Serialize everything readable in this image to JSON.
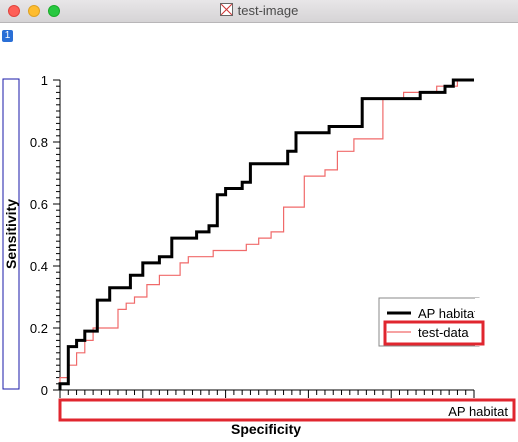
{
  "window": {
    "title": "test-image",
    "page_badge": "1",
    "icon": "image-document-icon"
  },
  "chart_data": {
    "type": "line",
    "xlabel": "Specificity",
    "ylabel": "Sensitivity",
    "axis_caption": "AP habitat",
    "xlim": [
      1,
      0
    ],
    "ylim": [
      0,
      1
    ],
    "y_ticks": [
      "0",
      "0.2",
      "0.4",
      "0.6",
      "0.8",
      "1"
    ],
    "legend": {
      "position": "bottom-right",
      "entries": [
        "AP habitat",
        "test-data"
      ]
    },
    "series": [
      {
        "name": "AP habitat",
        "color": "#000000",
        "points": [
          [
            1.0,
            0.0
          ],
          [
            1.0,
            0.02
          ],
          [
            0.98,
            0.02
          ],
          [
            0.98,
            0.14
          ],
          [
            0.96,
            0.14
          ],
          [
            0.96,
            0.16
          ],
          [
            0.94,
            0.16
          ],
          [
            0.94,
            0.19
          ],
          [
            0.91,
            0.19
          ],
          [
            0.91,
            0.29
          ],
          [
            0.88,
            0.29
          ],
          [
            0.88,
            0.33
          ],
          [
            0.83,
            0.33
          ],
          [
            0.83,
            0.37
          ],
          [
            0.8,
            0.37
          ],
          [
            0.8,
            0.41
          ],
          [
            0.76,
            0.41
          ],
          [
            0.76,
            0.43
          ],
          [
            0.73,
            0.43
          ],
          [
            0.73,
            0.49
          ],
          [
            0.67,
            0.49
          ],
          [
            0.67,
            0.51
          ],
          [
            0.64,
            0.51
          ],
          [
            0.64,
            0.53
          ],
          [
            0.62,
            0.53
          ],
          [
            0.62,
            0.63
          ],
          [
            0.6,
            0.63
          ],
          [
            0.6,
            0.65
          ],
          [
            0.56,
            0.65
          ],
          [
            0.56,
            0.67
          ],
          [
            0.54,
            0.67
          ],
          [
            0.54,
            0.73
          ],
          [
            0.45,
            0.73
          ],
          [
            0.45,
            0.77
          ],
          [
            0.43,
            0.77
          ],
          [
            0.43,
            0.83
          ],
          [
            0.35,
            0.83
          ],
          [
            0.35,
            0.85
          ],
          [
            0.27,
            0.85
          ],
          [
            0.27,
            0.94
          ],
          [
            0.13,
            0.94
          ],
          [
            0.13,
            0.96
          ],
          [
            0.07,
            0.96
          ],
          [
            0.07,
            0.98
          ],
          [
            0.05,
            0.98
          ],
          [
            0.05,
            1.0
          ],
          [
            0.0,
            1.0
          ]
        ]
      },
      {
        "name": "test-data",
        "color": "#f06a6a",
        "points": [
          [
            1.0,
            0.0
          ],
          [
            1.0,
            0.04
          ],
          [
            0.98,
            0.04
          ],
          [
            0.98,
            0.08
          ],
          [
            0.96,
            0.08
          ],
          [
            0.96,
            0.12
          ],
          [
            0.94,
            0.12
          ],
          [
            0.94,
            0.16
          ],
          [
            0.92,
            0.16
          ],
          [
            0.92,
            0.2
          ],
          [
            0.86,
            0.2
          ],
          [
            0.86,
            0.26
          ],
          [
            0.84,
            0.26
          ],
          [
            0.84,
            0.28
          ],
          [
            0.82,
            0.28
          ],
          [
            0.82,
            0.3
          ],
          [
            0.79,
            0.3
          ],
          [
            0.79,
            0.34
          ],
          [
            0.76,
            0.34
          ],
          [
            0.76,
            0.37
          ],
          [
            0.71,
            0.37
          ],
          [
            0.71,
            0.41
          ],
          [
            0.69,
            0.41
          ],
          [
            0.69,
            0.43
          ],
          [
            0.63,
            0.43
          ],
          [
            0.63,
            0.45
          ],
          [
            0.55,
            0.45
          ],
          [
            0.55,
            0.47
          ],
          [
            0.52,
            0.47
          ],
          [
            0.52,
            0.49
          ],
          [
            0.49,
            0.49
          ],
          [
            0.49,
            0.51
          ],
          [
            0.46,
            0.51
          ],
          [
            0.46,
            0.59
          ],
          [
            0.41,
            0.59
          ],
          [
            0.41,
            0.69
          ],
          [
            0.36,
            0.69
          ],
          [
            0.36,
            0.71
          ],
          [
            0.33,
            0.71
          ],
          [
            0.33,
            0.77
          ],
          [
            0.29,
            0.77
          ],
          [
            0.29,
            0.81
          ],
          [
            0.22,
            0.81
          ],
          [
            0.22,
            0.94
          ],
          [
            0.17,
            0.94
          ],
          [
            0.17,
            0.96
          ],
          [
            0.09,
            0.96
          ],
          [
            0.09,
            0.98
          ],
          [
            0.04,
            0.98
          ],
          [
            0.04,
            1.0
          ],
          [
            0.0,
            1.0
          ]
        ]
      }
    ]
  }
}
